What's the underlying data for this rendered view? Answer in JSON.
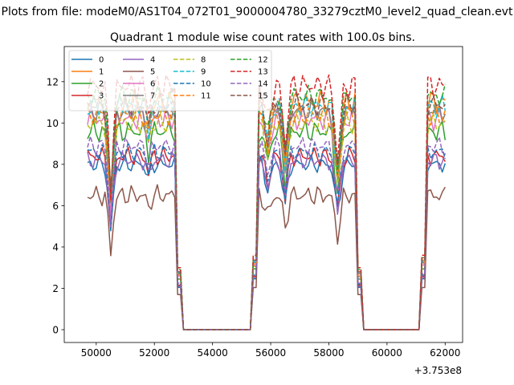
{
  "chart_data": {
    "type": "line",
    "figure_title": "Plots from file: modeM0/AS1T04_072T01_9000004780_33279cztM0_level2_quad_clean.evt",
    "title": "Quadrant 1 module wise count rates with 100.0s bins.",
    "xlabel": "",
    "ylabel": "",
    "x_offset_label": "+3.753e8",
    "xlim": [
      48900,
      62600
    ],
    "ylim": [
      -0.62,
      13.7
    ],
    "xticks": [
      50000,
      52000,
      54000,
      56000,
      58000,
      60000,
      62000
    ],
    "xtick_labels": [
      "50000",
      "52000",
      "54000",
      "56000",
      "58000",
      "60000",
      "62000"
    ],
    "yticks": [
      0,
      2,
      4,
      6,
      8,
      10,
      12
    ],
    "ytick_labels": [
      "0",
      "2",
      "4",
      "6",
      "8",
      "10",
      "12"
    ],
    "legend_position": "upper-left",
    "legend_columns": 4,
    "segments": [
      [
        49700,
        52900
      ],
      [
        55400,
        59100
      ],
      [
        61200,
        62000
      ]
    ],
    "bin_seconds": 100,
    "series": [
      {
        "name": "0",
        "color": "#1f77b4",
        "dash": "solid",
        "level": 8.0,
        "noise": 0.38,
        "edge": 4.1
      },
      {
        "name": "1",
        "color": "#ff7f0e",
        "dash": "solid",
        "level": 11.0,
        "noise": 0.55,
        "edge": 5.6
      },
      {
        "name": "2",
        "color": "#2ca02c",
        "dash": "solid",
        "level": 9.6,
        "noise": 0.5,
        "edge": 4.9
      },
      {
        "name": "3",
        "color": "#d62728",
        "dash": "solid",
        "level": 8.4,
        "noise": 0.42,
        "edge": 4.3
      },
      {
        "name": "4",
        "color": "#9467bd",
        "dash": "solid",
        "level": 8.2,
        "noise": 0.4,
        "edge": 4.2
      },
      {
        "name": "5",
        "color": "#8c564b",
        "dash": "solid",
        "level": 6.5,
        "noise": 0.45,
        "edge": 3.4
      },
      {
        "name": "6",
        "color": "#e377c2",
        "dash": "solid",
        "level": 10.2,
        "noise": 0.5,
        "edge": 5.2
      },
      {
        "name": "7",
        "color": "#7f7f7f",
        "dash": "solid",
        "level": 10.6,
        "noise": 0.5,
        "edge": 5.4
      },
      {
        "name": "8",
        "color": "#bcbd22",
        "dash": "dashed",
        "level": 10.0,
        "noise": 0.5,
        "edge": 5.1
      },
      {
        "name": "9",
        "color": "#17becf",
        "dash": "dashed",
        "level": 10.8,
        "noise": 0.5,
        "edge": 5.5
      },
      {
        "name": "10",
        "color": "#1f77b4",
        "dash": "dashed",
        "level": 8.6,
        "noise": 0.4,
        "edge": 4.4
      },
      {
        "name": "11",
        "color": "#ff7f0e",
        "dash": "dashed",
        "level": 10.4,
        "noise": 0.5,
        "edge": 5.3
      },
      {
        "name": "12",
        "color": "#2ca02c",
        "dash": "dashed",
        "level": 11.3,
        "noise": 0.5,
        "edge": 5.8
      },
      {
        "name": "13",
        "color": "#d62728",
        "dash": "dashed",
        "level": 11.8,
        "noise": 0.55,
        "edge": 6.0
      },
      {
        "name": "14",
        "color": "#9467bd",
        "dash": "dashed",
        "level": 8.9,
        "noise": 0.42,
        "edge": 4.5
      },
      {
        "name": "15",
        "color": "#8c564b",
        "dash": "dashed",
        "level": 10.9,
        "noise": 0.5,
        "edge": 5.6
      }
    ]
  }
}
